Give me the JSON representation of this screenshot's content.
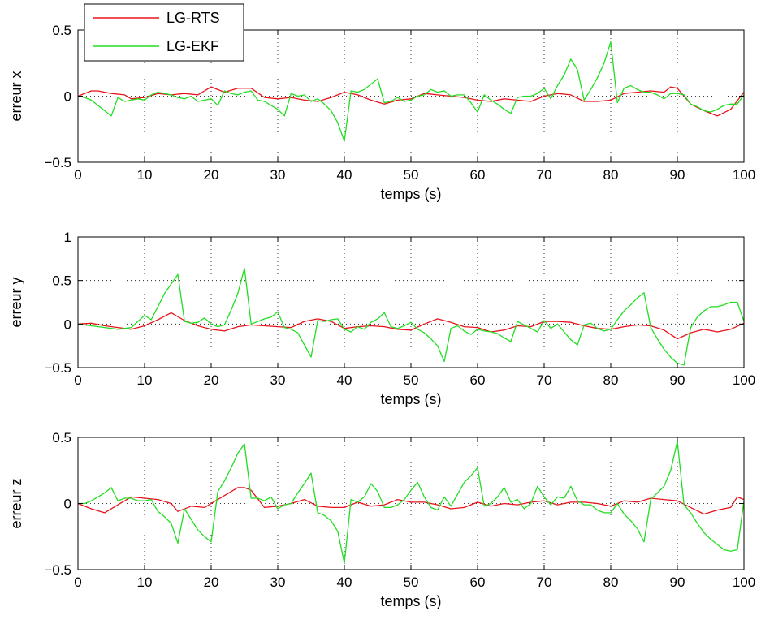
{
  "colors": {
    "rts": "#e8141c",
    "ekf": "#22dd22",
    "axis": "#000000",
    "grid": "#000000"
  },
  "legend": {
    "placement": "top-left",
    "entries": [
      "LG-RTS",
      "LG-EKF"
    ]
  },
  "chart_data": [
    {
      "type": "line",
      "xlabel": "temps (s)",
      "ylabel": "erreur x",
      "xlim": [
        0,
        100
      ],
      "ylim": [
        -0.5,
        0.5
      ],
      "xticks": [
        "0",
        "10",
        "20",
        "30",
        "40",
        "50",
        "60",
        "70",
        "80",
        "90",
        "100"
      ],
      "yticks": [
        "-0.5",
        "0",
        "0.5"
      ],
      "grid": true,
      "series": [
        {
          "name": "LG-RTS",
          "x": [
            0,
            2,
            3,
            5,
            7,
            8,
            10,
            12,
            14,
            16,
            18,
            19,
            20,
            22,
            24,
            26,
            28,
            30,
            32,
            34,
            36,
            38,
            40,
            42,
            44,
            46,
            48,
            50,
            52,
            54,
            56,
            58,
            60,
            62,
            64,
            66,
            68,
            70,
            72,
            74,
            76,
            78,
            80,
            82,
            84,
            86,
            88,
            89,
            90,
            92,
            94,
            96,
            98,
            100
          ],
          "y": [
            0,
            0.04,
            0.04,
            0.02,
            0.01,
            -0.02,
            -0.01,
            0.02,
            0.01,
            0.02,
            0.01,
            0.04,
            0.07,
            0.03,
            0.06,
            0.06,
            -0.01,
            -0.02,
            -0.01,
            -0.03,
            -0.04,
            -0.01,
            0.03,
            0.01,
            -0.03,
            -0.06,
            -0.03,
            -0.02,
            0.02,
            0.01,
            0,
            -0.01,
            -0.03,
            -0.04,
            -0.02,
            -0.03,
            -0.04,
            0,
            0.02,
            0.01,
            -0.04,
            -0.04,
            -0.03,
            0.02,
            0.03,
            0.04,
            0.03,
            0.07,
            0.06,
            -0.06,
            -0.11,
            -0.15,
            -0.1,
            0.03
          ]
        },
        {
          "name": "LG-EKF",
          "x": [
            0,
            1,
            2,
            5,
            6,
            7,
            8,
            9,
            10,
            11,
            12,
            13,
            14,
            15,
            16,
            17,
            18,
            19,
            20,
            21,
            22,
            23,
            24,
            25,
            26,
            27,
            28,
            29,
            30,
            31,
            32,
            33,
            34,
            35,
            36,
            37,
            38,
            39,
            40,
            41,
            42,
            43,
            44,
            45,
            46,
            47,
            48,
            49,
            50,
            51,
            52,
            53,
            54,
            55,
            56,
            57,
            58,
            59,
            60,
            61,
            62,
            63,
            64,
            65,
            66,
            67,
            68,
            69,
            70,
            71,
            72,
            73,
            74,
            75,
            76,
            77,
            78,
            79,
            80,
            81,
            82,
            83,
            84,
            85,
            86,
            87,
            88,
            89,
            90,
            91,
            92,
            93,
            94,
            95,
            96,
            97,
            98,
            99,
            100
          ],
          "y": [
            0,
            -0.01,
            -0.03,
            -0.15,
            -0.01,
            -0.04,
            -0.03,
            -0.02,
            -0.03,
            0.01,
            0.03,
            0.02,
            0.01,
            -0.01,
            -0.02,
            0,
            -0.04,
            -0.03,
            -0.02,
            -0.07,
            0.04,
            0.02,
            0.01,
            0.03,
            0.04,
            -0.03,
            -0.04,
            -0.07,
            -0.1,
            -0.15,
            0.02,
            0,
            0.01,
            -0.04,
            -0.02,
            -0.06,
            -0.11,
            -0.2,
            -0.34,
            0.04,
            0.03,
            0.05,
            0.09,
            0.13,
            -0.05,
            -0.04,
            -0.01,
            -0.04,
            -0.03,
            0,
            0.01,
            0.05,
            0.03,
            0.04,
            0,
            0.01,
            0.01,
            -0.05,
            -0.12,
            0.01,
            -0.03,
            -0.06,
            -0.1,
            -0.13,
            -0.01,
            0,
            0,
            0.02,
            0.06,
            -0.02,
            0.08,
            0.16,
            0.28,
            0.2,
            -0.03,
            0.05,
            0.14,
            0.25,
            0.41,
            -0.05,
            0.06,
            0.08,
            0.05,
            0.03,
            0.03,
            0.01,
            -0.02,
            0.02,
            0.02,
            0.01,
            -0.06,
            -0.08,
            -0.11,
            -0.12,
            -0.1,
            -0.07,
            -0.06,
            -0.06,
            0.01
          ]
        }
      ]
    },
    {
      "type": "line",
      "xlabel": "temps (s)",
      "ylabel": "erreur y",
      "xlim": [
        0,
        100
      ],
      "ylim": [
        -0.5,
        1
      ],
      "xticks": [
        "0",
        "10",
        "20",
        "30",
        "40",
        "50",
        "60",
        "70",
        "80",
        "90",
        "100"
      ],
      "yticks": [
        "-0.5",
        "0",
        "0.5",
        "1"
      ],
      "grid": true,
      "series": [
        {
          "name": "LG-RTS",
          "x": [
            0,
            2,
            4,
            6,
            8,
            10,
            12,
            14,
            16,
            18,
            20,
            22,
            24,
            26,
            28,
            30,
            32,
            34,
            36,
            38,
            40,
            42,
            44,
            46,
            48,
            50,
            52,
            54,
            56,
            58,
            60,
            62,
            64,
            66,
            68,
            70,
            72,
            74,
            76,
            78,
            80,
            82,
            84,
            86,
            88,
            90,
            92,
            94,
            96,
            98,
            100
          ],
          "y": [
            0,
            0.01,
            -0.02,
            -0.04,
            -0.06,
            -0.02,
            0.05,
            0.13,
            0.04,
            -0.02,
            -0.06,
            -0.08,
            -0.03,
            -0.01,
            -0.02,
            -0.03,
            -0.04,
            0.03,
            0.06,
            0.03,
            -0.05,
            -0.03,
            -0.02,
            -0.03,
            -0.06,
            -0.07,
            0,
            0.06,
            0.02,
            -0.03,
            -0.04,
            -0.09,
            -0.07,
            -0.02,
            -0.03,
            0.03,
            0.03,
            0.02,
            -0.02,
            -0.05,
            -0.06,
            -0.03,
            -0.01,
            -0.02,
            -0.07,
            -0.17,
            -0.1,
            -0.06,
            -0.09,
            -0.06,
            0.01
          ]
        },
        {
          "name": "LG-EKF",
          "x": [
            0,
            2,
            4,
            6,
            8,
            10,
            11,
            12,
            13,
            14,
            15,
            16,
            17,
            18,
            19,
            20,
            21,
            22,
            23,
            24,
            25,
            26,
            27,
            28,
            29,
            30,
            31,
            32,
            33,
            34,
            35,
            36,
            37,
            38,
            39,
            40,
            41,
            42,
            43,
            44,
            45,
            46,
            47,
            48,
            49,
            50,
            51,
            52,
            53,
            54,
            55,
            56,
            57,
            58,
            59,
            60,
            61,
            62,
            63,
            64,
            65,
            66,
            67,
            68,
            69,
            70,
            71,
            72,
            73,
            74,
            75,
            76,
            77,
            78,
            79,
            80,
            81,
            82,
            83,
            84,
            85,
            86,
            87,
            88,
            89,
            90,
            91,
            92,
            93,
            94,
            95,
            96,
            97,
            98,
            99,
            100
          ],
          "y": [
            0,
            -0.02,
            -0.04,
            -0.06,
            -0.04,
            0.1,
            0.05,
            0.2,
            0.35,
            0.46,
            0.57,
            0.03,
            0.01,
            0.02,
            0.07,
            0,
            -0.03,
            -0.01,
            0.16,
            0.35,
            0.64,
            0,
            0.03,
            0.06,
            0.08,
            0.14,
            -0.04,
            -0.06,
            -0.1,
            -0.24,
            -0.38,
            0.04,
            0.03,
            0.05,
            0.06,
            -0.06,
            -0.09,
            -0.03,
            -0.06,
            0.02,
            0.06,
            0.13,
            -0.03,
            -0.05,
            -0.02,
            0.02,
            -0.06,
            -0.1,
            -0.17,
            -0.25,
            -0.43,
            -0.05,
            -0.02,
            -0.08,
            -0.12,
            -0.06,
            -0.08,
            -0.09,
            -0.11,
            -0.16,
            -0.2,
            0.03,
            -0.01,
            -0.05,
            -0.09,
            0.04,
            -0.05,
            0,
            -0.09,
            -0.18,
            -0.24,
            -0.01,
            0.01,
            -0.05,
            -0.08,
            -0.06,
            0.05,
            0.15,
            0.22,
            0.3,
            0.36,
            -0.04,
            -0.17,
            -0.29,
            -0.38,
            -0.45,
            -0.47,
            -0.04,
            0.08,
            0.15,
            0.2,
            0.2,
            0.22,
            0.25,
            0.25,
            0.03
          ]
        }
      ]
    },
    {
      "type": "line",
      "xlabel": "temps (s)",
      "ylabel": "erreur z",
      "xlim": [
        0,
        100
      ],
      "ylim": [
        -0.5,
        0.5
      ],
      "xticks": [
        "0",
        "10",
        "20",
        "30",
        "40",
        "50",
        "60",
        "70",
        "80",
        "90",
        "100"
      ],
      "yticks": [
        "-0.5",
        "0",
        "0.5"
      ],
      "grid": true,
      "series": [
        {
          "name": "LG-RTS",
          "x": [
            0,
            2,
            4,
            6,
            8,
            10,
            12,
            14,
            15,
            17,
            19,
            21,
            23,
            24,
            25,
            26,
            28,
            30,
            32,
            34,
            36,
            38,
            40,
            42,
            44,
            46,
            48,
            50,
            52,
            54,
            56,
            58,
            60,
            62,
            64,
            66,
            68,
            70,
            72,
            74,
            76,
            78,
            80,
            82,
            84,
            86,
            88,
            90,
            92,
            94,
            96,
            98,
            99,
            100
          ],
          "y": [
            0,
            -0.04,
            -0.07,
            -0.01,
            0.05,
            0.04,
            0.03,
            0,
            -0.06,
            -0.02,
            -0.03,
            0.03,
            0.09,
            0.12,
            0.12,
            0.1,
            -0.03,
            -0.02,
            0,
            0.03,
            -0.02,
            -0.03,
            -0.03,
            0.01,
            -0.02,
            -0.01,
            0.03,
            0.01,
            0.01,
            -0.01,
            -0.04,
            -0.03,
            0.01,
            -0.02,
            0,
            -0.01,
            0.01,
            0.02,
            -0.01,
            0.01,
            0.01,
            0,
            -0.02,
            0.02,
            0.01,
            0.04,
            0.03,
            0.02,
            -0.03,
            -0.08,
            -0.05,
            -0.03,
            0.05,
            0.03
          ]
        },
        {
          "name": "LG-EKF",
          "x": [
            0,
            1,
            2,
            3,
            4,
            5,
            6,
            7,
            8,
            9,
            10,
            11,
            12,
            13,
            14,
            15,
            16,
            17,
            18,
            19,
            20,
            21,
            22,
            23,
            24,
            25,
            26,
            27,
            28,
            29,
            30,
            31,
            32,
            33,
            34,
            35,
            36,
            37,
            38,
            39,
            40,
            41,
            42,
            43,
            44,
            45,
            46,
            47,
            48,
            49,
            50,
            51,
            52,
            53,
            54,
            55,
            56,
            57,
            58,
            59,
            60,
            61,
            62,
            63,
            64,
            65,
            66,
            67,
            68,
            69,
            70,
            71,
            72,
            73,
            74,
            75,
            76,
            77,
            78,
            79,
            80,
            81,
            82,
            83,
            84,
            85,
            86,
            87,
            88,
            89,
            90,
            91,
            92,
            93,
            94,
            95,
            96,
            97,
            98,
            99,
            100
          ],
          "y": [
            0,
            0,
            0.02,
            0.05,
            0.08,
            0.12,
            0.02,
            0.04,
            0.04,
            0.02,
            0.02,
            0.03,
            -0.06,
            -0.1,
            -0.15,
            -0.3,
            -0.04,
            -0.12,
            -0.2,
            -0.25,
            -0.29,
            0.09,
            0.17,
            0.27,
            0.38,
            0.45,
            0.04,
            0.04,
            0.02,
            0.05,
            -0.04,
            -0.01,
            0,
            0.08,
            0.15,
            0.23,
            -0.07,
            -0.09,
            -0.13,
            -0.21,
            -0.45,
            0.03,
            0.01,
            0.05,
            0.15,
            0.09,
            -0.03,
            -0.03,
            -0.01,
            0.03,
            0.1,
            0.16,
            0.05,
            -0.03,
            -0.05,
            0.05,
            -0.02,
            0.07,
            0.16,
            0.21,
            0.27,
            -0.02,
            0,
            0.05,
            0.12,
            0.01,
            0.03,
            -0.04,
            0,
            0.13,
            0.05,
            -0.01,
            0.05,
            0.04,
            0.13,
            0.02,
            -0.01,
            -0.01,
            -0.05,
            -0.07,
            -0.07,
            0,
            -0.08,
            -0.13,
            -0.19,
            -0.29,
            0.03,
            0.08,
            0.13,
            0.25,
            0.47,
            -0.01,
            -0.07,
            -0.15,
            -0.22,
            -0.27,
            -0.31,
            -0.35,
            -0.36,
            -0.35,
            0.02
          ]
        }
      ]
    }
  ]
}
